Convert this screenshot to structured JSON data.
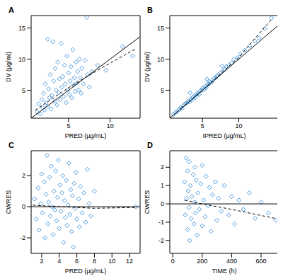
{
  "chart_data": [
    {
      "type": "scatter",
      "title": "A",
      "x_label": "PRED (μg/mL)",
      "y_label": "DV (μg/ml)",
      "xlim": [
        0.5,
        13.6
      ],
      "ylim": [
        0.5,
        17
      ],
      "xticks": [
        5,
        10
      ],
      "yticks": [
        5,
        10,
        15
      ],
      "series": [
        {
          "type": "scatter",
          "marker": "diamond",
          "color": "#3b8ed8",
          "x": [
            1.2,
            1.4,
            1.6,
            1.8,
            1.9,
            2.0,
            2.1,
            2.2,
            2.3,
            2.5,
            2.5,
            2.6,
            2.7,
            2.8,
            2.9,
            3.0,
            3.1,
            3.2,
            3.3,
            3.4,
            3.5,
            3.6,
            3.7,
            3.8,
            3.9,
            4.0,
            4.1,
            4.2,
            4.3,
            4.4,
            4.5,
            4.6,
            4.7,
            4.8,
            4.9,
            5.0,
            5.1,
            5.2,
            5.3,
            5.4,
            5.5,
            5.6,
            5.7,
            5.8,
            5.9,
            6.0,
            6.1,
            6.2,
            6.3,
            6.4,
            6.5,
            6.6,
            6.8,
            7.0,
            7.2,
            7.3,
            7.5,
            7.8,
            8.5,
            9.5,
            11.5,
            12.7
          ],
          "values": [
            1.5,
            2.8,
            1.2,
            3.5,
            2.2,
            4.5,
            1.8,
            6.0,
            3.0,
            2.4,
            13.2,
            5.2,
            3.8,
            7.5,
            2.0,
            4.2,
            12.8,
            6.5,
            3.2,
            8.5,
            5.0,
            2.6,
            9.5,
            4.6,
            6.8,
            3.5,
            12.5,
            5.5,
            7.2,
            4.0,
            9.0,
            6.0,
            3.0,
            10.5,
            5.0,
            7.8,
            4.3,
            6.5,
            8.8,
            3.8,
            11.5,
            5.8,
            7.0,
            4.8,
            9.5,
            6.2,
            8.0,
            5.0,
            10.0,
            7.0,
            4.5,
            8.5,
            6.0,
            9.8,
            16.7,
            7.5,
            5.5,
            8.0,
            9.0,
            8.2,
            12.0,
            10.5
          ]
        },
        {
          "type": "line",
          "line_style": "solid",
          "color": "#000000",
          "x": [
            0.5,
            13.6
          ],
          "values": [
            0.5,
            13.6
          ]
        },
        {
          "type": "line",
          "line_style": "dashed",
          "color": "#000000",
          "x": [
            1,
            5,
            9,
            13
          ],
          "values": [
            1.8,
            5.4,
            8.6,
            11.6
          ]
        }
      ]
    },
    {
      "type": "scatter",
      "title": "B",
      "x_label": "IPRED (μg/mL)",
      "y_label": "DV (μg/ml)",
      "xlim": [
        0.5,
        15.5
      ],
      "ylim": [
        0.5,
        17
      ],
      "xticks": [
        5,
        10
      ],
      "yticks": [
        5,
        10,
        15
      ],
      "series": [
        {
          "type": "scatter",
          "marker": "diamond",
          "color": "#3b8ed8",
          "x": [
            1.0,
            1.3,
            1.5,
            1.8,
            2.0,
            2.2,
            2.4,
            2.6,
            2.8,
            3.0,
            3.2,
            3.4,
            3.5,
            3.7,
            3.9,
            4.0,
            4.2,
            4.4,
            4.5,
            4.7,
            4.9,
            5.0,
            5.2,
            5.4,
            5.5,
            5.7,
            5.9,
            6.0,
            6.2,
            6.4,
            6.6,
            6.8,
            7.0,
            7.2,
            7.5,
            7.8,
            8.0,
            8.3,
            8.6,
            9.0,
            9.3,
            9.8,
            10.2,
            10.8,
            11.5,
            12.2,
            12.8,
            13.6,
            14.5,
            7.7,
            5.6,
            3.3
          ],
          "values": [
            1.1,
            1.4,
            1.6,
            1.9,
            2.2,
            2.1,
            2.6,
            2.8,
            2.9,
            3.2,
            3.1,
            3.6,
            3.4,
            3.9,
            4.1,
            3.8,
            4.4,
            4.5,
            4.3,
            4.9,
            5.0,
            5.3,
            5.1,
            5.6,
            5.4,
            5.9,
            6.0,
            6.4,
            6.3,
            6.5,
            6.9,
            7.0,
            7.3,
            7.5,
            7.8,
            8.1,
            8.3,
            8.8,
            9.0,
            9.4,
            10.0,
            10.2,
            10.8,
            11.4,
            12.1,
            12.9,
            13.4,
            14.9,
            16.6,
            8.9,
            6.8,
            4.6
          ]
        },
        {
          "type": "line",
          "line_style": "solid",
          "color": "#000000",
          "x": [
            0.5,
            15.5
          ],
          "values": [
            0.5,
            15.5
          ]
        },
        {
          "type": "line",
          "line_style": "dashed",
          "color": "#000000",
          "x": [
            1,
            5,
            10,
            14.5
          ],
          "values": [
            1.0,
            5.0,
            10.3,
            16.4
          ]
        }
      ]
    },
    {
      "type": "scatter",
      "title": "C",
      "x_label": "PRED (μg/mL)",
      "y_label": "CWRES",
      "xlim": [
        0.8,
        13.2
      ],
      "ylim": [
        -3,
        3.6
      ],
      "xticks": [
        2,
        4,
        6,
        8,
        10,
        12
      ],
      "yticks": [
        -2,
        0,
        2
      ],
      "series": [
        {
          "type": "scatter",
          "marker": "diamond",
          "color": "#3b8ed8",
          "x": [
            1.2,
            1.4,
            1.6,
            1.7,
            1.9,
            2.0,
            2.1,
            2.3,
            2.4,
            2.5,
            2.6,
            2.7,
            2.8,
            2.9,
            3.0,
            3.1,
            3.2,
            3.3,
            3.4,
            3.5,
            3.6,
            3.7,
            3.8,
            3.9,
            4.0,
            4.1,
            4.2,
            4.3,
            4.4,
            4.5,
            4.6,
            4.7,
            4.8,
            4.9,
            5.0,
            5.1,
            5.2,
            5.3,
            5.4,
            5.5,
            5.6,
            5.7,
            5.8,
            5.9,
            6.0,
            6.2,
            6.3,
            6.4,
            6.6,
            6.8,
            7.0,
            7.2,
            7.4,
            7.6,
            8.0,
            12.7
          ],
          "values": [
            0.5,
            -0.8,
            1.2,
            -1.5,
            0.2,
            2.1,
            -0.4,
            1.6,
            -2.0,
            0.8,
            3.3,
            -1.1,
            0.3,
            1.9,
            -0.6,
            2.6,
            0,
            -1.8,
            1.0,
            -0.2,
            2.3,
            -0.9,
            0.6,
            3.0,
            -1.4,
            1.4,
            -0.3,
            0.9,
            2.0,
            -2.3,
            0.4,
            -0.7,
            1.7,
            -1.2,
            0.1,
            2.8,
            -0.5,
            1.1,
            -1.6,
            0.7,
            -2.6,
            1.5,
            -0.1,
            2.2,
            -0.8,
            0.5,
            -1.3,
            1.3,
            -0.4,
            0.9,
            -1.0,
            2.4,
            0.2,
            -0.6,
            1.0,
            0
          ]
        },
        {
          "type": "line",
          "line_style": "solid",
          "color": "#000000",
          "x": [
            0.8,
            13.2
          ],
          "values": [
            0,
            0
          ]
        },
        {
          "type": "line",
          "line_style": "dashed",
          "color": "#000000",
          "x": [
            1,
            4,
            8,
            12.7
          ],
          "values": [
            0.1,
            0,
            -0.1,
            -0.05
          ]
        }
      ]
    },
    {
      "type": "scatter",
      "title": "D",
      "x_label": "TIME (h)",
      "y_label": "CWRES",
      "xlim": [
        -20,
        720
      ],
      "ylim": [
        -2.7,
        2.9
      ],
      "xticks": [
        0,
        200,
        400,
        600
      ],
      "yticks": [
        -2,
        -1,
        0,
        1,
        2
      ],
      "series": [
        {
          "type": "scatter",
          "marker": "diamond",
          "color": "#3b8ed8",
          "x": [
            80,
            85,
            90,
            95,
            100,
            100,
            105,
            110,
            110,
            115,
            120,
            125,
            130,
            140,
            145,
            150,
            150,
            155,
            160,
            165,
            170,
            180,
            190,
            200,
            200,
            210,
            220,
            225,
            240,
            250,
            260,
            270,
            290,
            300,
            310,
            330,
            350,
            380,
            400,
            420,
            450,
            480,
            520,
            560,
            600,
            650,
            700
          ],
          "values": [
            1.2,
            -0.6,
            2.5,
            0.3,
            -1.4,
            1.8,
            0.7,
            -0.2,
            2.3,
            -2.0,
            1.0,
            -0.8,
            0.4,
            1.6,
            -1.1,
            0.1,
            2.0,
            -0.5,
            1.3,
            -1.7,
            0.6,
            -0.3,
            1.1,
            -1.2,
            2.1,
            0.2,
            -0.7,
            1.5,
            -0.1,
            0.9,
            -1.5,
            0.5,
            1.2,
            -0.9,
            0.3,
            -0.4,
            1.0,
            -0.6,
            0.4,
            -1.1,
            0.2,
            -0.3,
            0.6,
            -0.8,
            0.1,
            -0.5,
            -0.9
          ]
        },
        {
          "type": "line",
          "line_style": "solid",
          "color": "#000000",
          "x": [
            -20,
            720
          ],
          "values": [
            0,
            0
          ]
        },
        {
          "type": "line",
          "line_style": "dashed",
          "color": "#000000",
          "x": [
            80,
            200,
            400,
            700
          ],
          "values": [
            0.2,
            0,
            -0.3,
            -0.8
          ]
        }
      ]
    }
  ]
}
